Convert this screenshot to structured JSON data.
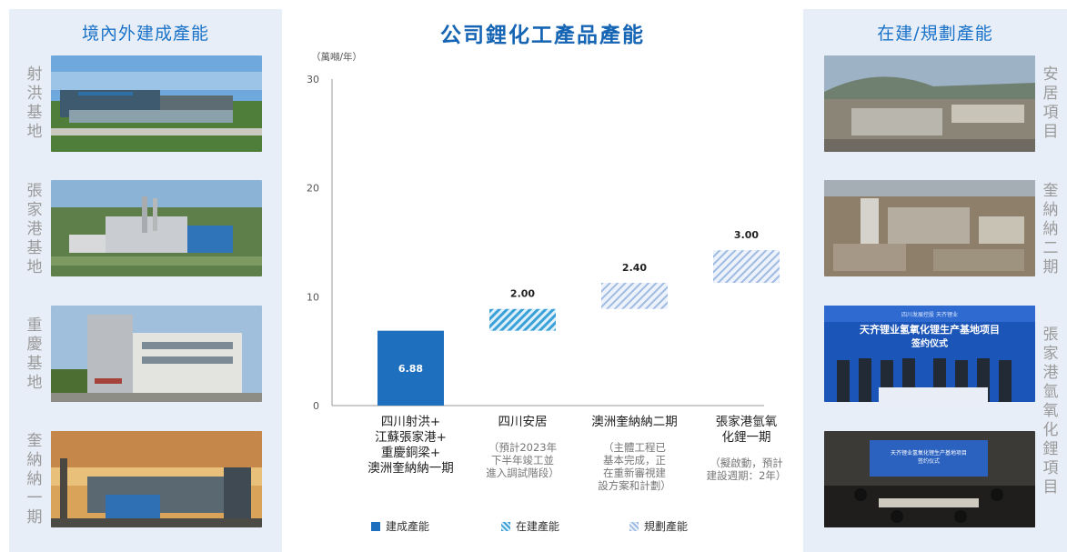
{
  "left_panel": {
    "title": "境內外建成產能",
    "sites": [
      {
        "label": "射洪基地",
        "photo_icon": "factory-campus-photo"
      },
      {
        "label": "張家港基地",
        "photo_icon": "chemical-plant-photo"
      },
      {
        "label": "重慶基地",
        "photo_icon": "office-building-photo"
      },
      {
        "label": "奎納納一期",
        "photo_icon": "sunset-plant-photo"
      }
    ]
  },
  "right_panel": {
    "title": "在建/規劃產能",
    "sites": [
      {
        "label": "安居項目",
        "photo_icon": "construction-site-photo"
      },
      {
        "label": "奎納納二期",
        "photo_icon": "aerial-plant-photo"
      },
      {
        "label": "張家港氫氧化鋰項目",
        "photo_icon": "signing-ceremony-photo"
      },
      {
        "label": "",
        "photo_icon": "meeting-room-photo"
      }
    ],
    "banner": {
      "logos": "四川发展控股    天齐锂业",
      "title_line1": "天齐锂业氢氧化锂生产基地项目",
      "title_line2": "签约仪式",
      "small_banner_line1": "天齐锂业氢氧化锂生产基地项目",
      "small_banner_line2": "签约仪式"
    }
  },
  "chart_data": {
    "type": "bar",
    "title": "公司鋰化工產品產能",
    "unit": "（萬噸/年）",
    "ylim": [
      0,
      30
    ],
    "yticks": [
      0,
      10,
      20,
      30
    ],
    "categories": [
      {
        "label": "四川射洪+\n江蘇張家港+\n重慶銅梁+\n澳洲奎納納一期",
        "note": ""
      },
      {
        "label": "四川安居",
        "note": "（預計2023年\n下半年竣工並\n進入調試階段）"
      },
      {
        "label": "澳洲奎納納二期",
        "note": "（主體工程已\n基本完成，正\n在重新審視建\n設方案和計劃）"
      },
      {
        "label": "張家港氫氧\n化鋰一期",
        "note": "（擬啟動，預計\n建設週期：2年）"
      }
    ],
    "bars": [
      {
        "base": 0,
        "value": 6.88,
        "label": "6.88",
        "status": "built"
      },
      {
        "base": 6.88,
        "value": 2.0,
        "label": "2.00",
        "status": "under_construction"
      },
      {
        "base": 8.88,
        "value": 2.4,
        "label": "2.40",
        "status": "planned"
      },
      {
        "base": 11.28,
        "value": 3.0,
        "label": "3.00",
        "status": "planned"
      }
    ],
    "legend": [
      {
        "key": "built",
        "label": "建成產能"
      },
      {
        "key": "under_construction",
        "label": "在建產能"
      },
      {
        "key": "planned",
        "label": "規劃產能"
      }
    ],
    "colors": {
      "built": "#1f6fbf",
      "under_construction": "#3aa0d8",
      "planned": "#a9c3e6"
    }
  }
}
